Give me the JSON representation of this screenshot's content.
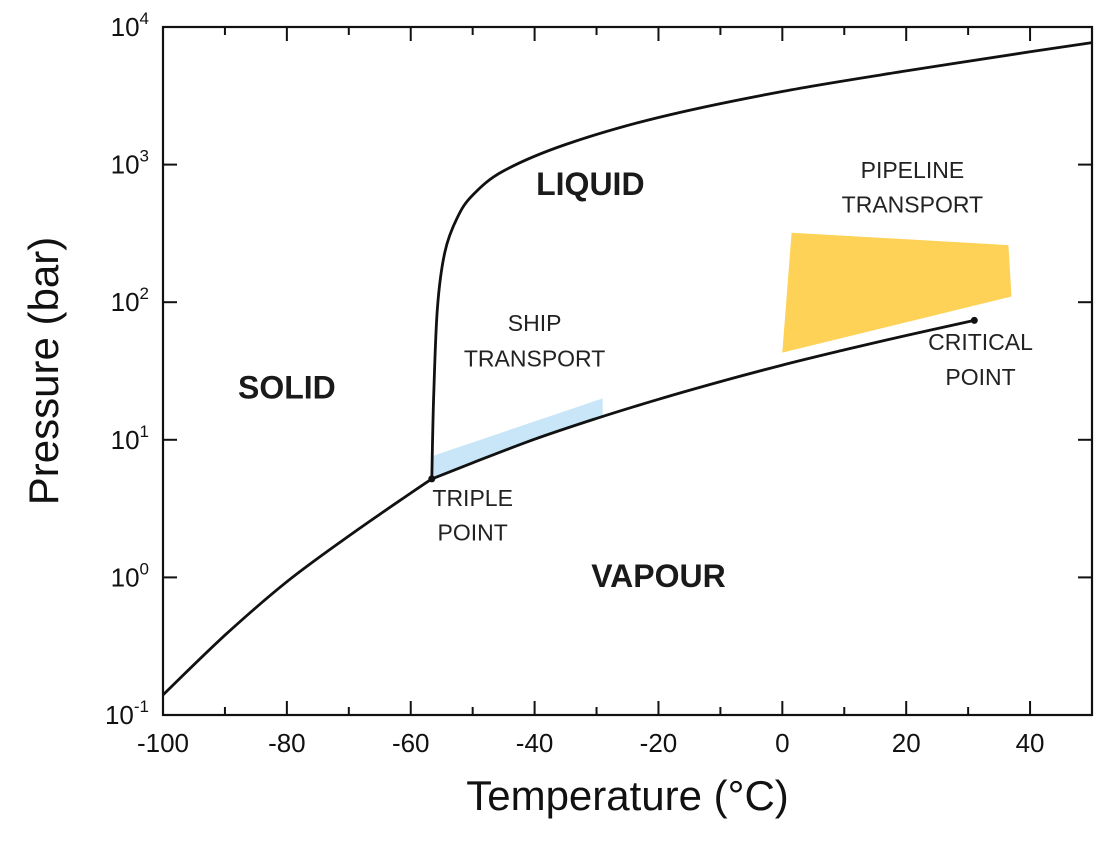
{
  "chart_data": {
    "type": "line",
    "xlabel": "Temperature (°C)",
    "ylabel": "Pressure (bar)",
    "xlim": [
      -100,
      50
    ],
    "ylim": [
      0.1,
      10000
    ],
    "yscale": "log",
    "x_ticks": [
      -100,
      -80,
      -60,
      -40,
      -20,
      0,
      20,
      40
    ],
    "x_tick_labels": [
      "-100",
      "-80",
      "-60",
      "-40",
      "-20",
      "0",
      "20",
      "40"
    ],
    "y_ticks": [
      0.1,
      1,
      10,
      100,
      1000,
      10000
    ],
    "y_tick_labels": [
      {
        "base": "10",
        "exp": "-1"
      },
      {
        "base": "10",
        "exp": "0"
      },
      {
        "base": "10",
        "exp": "1"
      },
      {
        "base": "10",
        "exp": "2"
      },
      {
        "base": "10",
        "exp": "3"
      },
      {
        "base": "10",
        "exp": "4"
      }
    ],
    "series": [
      {
        "id": "sublimation-curve",
        "x": [
          -100,
          -90,
          -80,
          -70,
          -60,
          -56.6
        ],
        "y": [
          0.14,
          0.38,
          0.93,
          2.0,
          4.1,
          5.2
        ]
      },
      {
        "id": "melting-curve",
        "x": [
          -56.6,
          -56.3,
          -55.7,
          -54.5,
          -52.5,
          -50,
          -45,
          -35,
          -20,
          0,
          20,
          40,
          50
        ],
        "y": [
          5.2,
          20,
          90,
          230,
          410,
          600,
          900,
          1400,
          2200,
          3400,
          4800,
          6600,
          7700
        ]
      },
      {
        "id": "vaporization-curve",
        "x": [
          -56.6,
          -50,
          -40,
          -30,
          -20,
          -10,
          0,
          10,
          20,
          31
        ],
        "y": [
          5.2,
          6.8,
          10.1,
          14.3,
          19.7,
          26.5,
          34.9,
          45.0,
          57.3,
          73.8
        ]
      }
    ],
    "shaded_regions": [
      {
        "id": "ship-transport-band",
        "color": "#c8e6f7",
        "x": [
          -56.6,
          -29,
          -29,
          -56.6
        ],
        "y": [
          5.2,
          15,
          20,
          7.6
        ]
      },
      {
        "id": "pipeline-transport-band",
        "color": "#fdd256",
        "x": [
          0,
          37,
          36.5,
          1.5
        ],
        "y": [
          43,
          110,
          260,
          320
        ]
      }
    ],
    "points": [
      {
        "id": "triple-point",
        "x": -56.6,
        "y": 5.2
      },
      {
        "id": "critical-point",
        "x": 31,
        "y": 73.8
      }
    ],
    "annotations": {
      "solid": {
        "text": "SOLID",
        "x": -80,
        "y": 20
      },
      "liquid": {
        "text": "LIQUID",
        "x": -31,
        "y": 600
      },
      "vapour": {
        "text": "VAPOUR",
        "x": -20,
        "y": 0.85
      },
      "ship_line1": {
        "text": "SHIP",
        "x": -40,
        "y": 62
      },
      "ship_line2": {
        "text": "TRANSPORT",
        "x": -40,
        "y": 34
      },
      "pipeline_line1": {
        "text": "PIPELINE",
        "x": 21,
        "y": 800
      },
      "pipeline_line2": {
        "text": "TRANSPORT",
        "x": 21,
        "y": 450
      },
      "triple_line1": {
        "text": "TRIPLE",
        "x": -50,
        "y": 3.3
      },
      "triple_line2": {
        "text": "POINT",
        "x": -50,
        "y": 1.85
      },
      "critical_line1": {
        "text": "CRITICAL",
        "x": 32,
        "y": 45
      },
      "critical_line2": {
        "text": "POINT",
        "x": 32,
        "y": 25
      }
    },
    "colors": {
      "curve": "#111111",
      "ship_text": "#3a8fd8",
      "pipeline_text": "#f0a020",
      "point": "#111111"
    }
  }
}
